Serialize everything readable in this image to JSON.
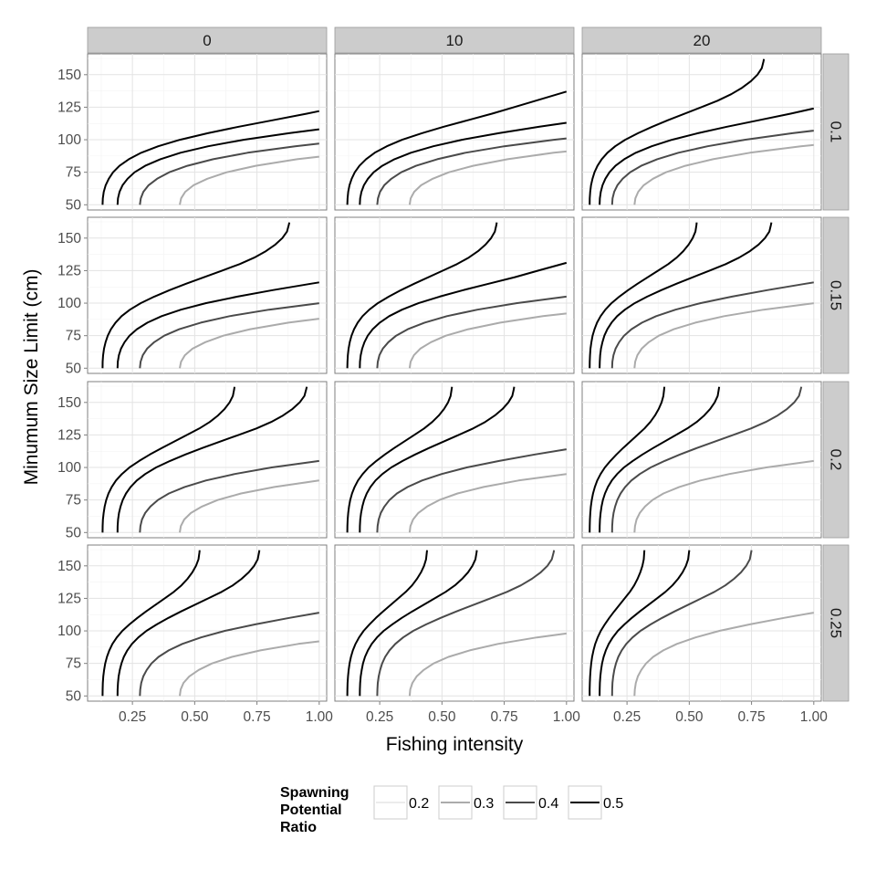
{
  "chart_data": {
    "type": "line",
    "facet_cols": [
      "0",
      "10",
      "20"
    ],
    "facet_rows": [
      "0.1",
      "0.15",
      "0.2",
      "0.25"
    ],
    "xlabel": "Fishing intensity",
    "ylabel": "Minumum Size Limit (cm)",
    "xlim": [
      0.07,
      1.03
    ],
    "ylim": [
      46,
      166
    ],
    "xticks": [
      "0.25",
      "0.50",
      "0.75",
      "1.00"
    ],
    "xtick_values": [
      0.25,
      0.5,
      0.75,
      1.0
    ],
    "yticks": [
      "50",
      "75",
      "100",
      "125",
      "150"
    ],
    "ytick_values": [
      50,
      75,
      100,
      125,
      150
    ],
    "grid": true,
    "legend": {
      "title_lines": [
        "Spawning",
        "Potential",
        "Ratio"
      ],
      "entries": [
        {
          "label": "0.2",
          "color": "#ececec"
        },
        {
          "label": "0.3",
          "color": "#ababab"
        },
        {
          "label": "0.4",
          "color": "#4a4a4a"
        },
        {
          "label": "0.5",
          "color": "#000000"
        }
      ],
      "position": "bottom"
    },
    "curve_shape": {
      "lower_y": [
        50,
        55,
        60,
        65,
        70,
        75,
        80,
        85,
        90,
        95,
        100,
        105,
        110,
        115,
        120,
        125
      ],
      "lower_dx": [
        0,
        0.001,
        0.004,
        0.01,
        0.02,
        0.034,
        0.055,
        0.085,
        0.125,
        0.18,
        0.25,
        0.34,
        0.44,
        0.55,
        0.66,
        0.76
      ],
      "upper_y": [
        125,
        130,
        135,
        140,
        145,
        150,
        155,
        160,
        162
      ],
      "upper_dx_before_top": [
        -0.115,
        -0.085,
        -0.06,
        -0.04,
        -0.024,
        -0.012,
        -0.004,
        -0.001,
        0
      ]
    },
    "panels": [
      {
        "col": "0",
        "row": "0.1",
        "series": [
          {
            "color": "#ababab",
            "x0": 0.44,
            "y_at_x1": 87
          },
          {
            "color": "#4a4a4a",
            "x0": 0.28,
            "y_at_x1": 97
          },
          {
            "color": "#000000",
            "x0": 0.19,
            "y_at_x1": 108
          },
          {
            "color": "#000000",
            "x0": 0.13,
            "y_at_x1": 122
          }
        ]
      },
      {
        "col": "10",
        "row": "0.1",
        "series": [
          {
            "color": "#ababab",
            "x0": 0.37,
            "y_at_x1": 91
          },
          {
            "color": "#4a4a4a",
            "x0": 0.24,
            "y_at_x1": 101
          },
          {
            "color": "#000000",
            "x0": 0.17,
            "y_at_x1": 113
          },
          {
            "color": "#000000",
            "x0": 0.12,
            "y_at_x1": 137
          }
        ]
      },
      {
        "col": "20",
        "row": "0.1",
        "series": [
          {
            "color": "#ababab",
            "x0": 0.28,
            "y_at_x1": 96
          },
          {
            "color": "#4a4a4a",
            "x0": 0.19,
            "y_at_x1": 107
          },
          {
            "color": "#000000",
            "x0": 0.14,
            "y_at_x1": 124
          },
          {
            "color": "#000000",
            "x0": 0.1,
            "x_top": 0.8
          }
        ]
      },
      {
        "col": "0",
        "row": "0.15",
        "series": [
          {
            "color": "#ababab",
            "x0": 0.44,
            "y_at_x1": 88
          },
          {
            "color": "#4a4a4a",
            "x0": 0.28,
            "y_at_x1": 100
          },
          {
            "color": "#000000",
            "x0": 0.19,
            "y_at_x1": 116
          },
          {
            "color": "#000000",
            "x0": 0.13,
            "x_top": 0.88
          }
        ]
      },
      {
        "col": "10",
        "row": "0.15",
        "series": [
          {
            "color": "#ababab",
            "x0": 0.37,
            "y_at_x1": 92
          },
          {
            "color": "#4a4a4a",
            "x0": 0.24,
            "y_at_x1": 105
          },
          {
            "color": "#000000",
            "x0": 0.17,
            "y_at_x1": 131
          },
          {
            "color": "#000000",
            "x0": 0.12,
            "x_top": 0.72
          }
        ]
      },
      {
        "col": "20",
        "row": "0.15",
        "series": [
          {
            "color": "#ababab",
            "x0": 0.28,
            "y_at_x1": 100
          },
          {
            "color": "#4a4a4a",
            "x0": 0.19,
            "y_at_x1": 116
          },
          {
            "color": "#000000",
            "x0": 0.14,
            "x_top": 0.83
          },
          {
            "color": "#000000",
            "x0": 0.1,
            "x_top": 0.53
          }
        ]
      },
      {
        "col": "0",
        "row": "0.2",
        "series": [
          {
            "color": "#ababab",
            "x0": 0.44,
            "y_at_x1": 90
          },
          {
            "color": "#4a4a4a",
            "x0": 0.28,
            "y_at_x1": 105
          },
          {
            "color": "#000000",
            "x0": 0.19,
            "x_top": 0.95
          },
          {
            "color": "#000000",
            "x0": 0.13,
            "x_top": 0.66
          }
        ]
      },
      {
        "col": "10",
        "row": "0.2",
        "series": [
          {
            "color": "#ababab",
            "x0": 0.37,
            "y_at_x1": 95
          },
          {
            "color": "#4a4a4a",
            "x0": 0.24,
            "y_at_x1": 114
          },
          {
            "color": "#000000",
            "x0": 0.17,
            "x_top": 0.79
          },
          {
            "color": "#000000",
            "x0": 0.12,
            "x_top": 0.54
          }
        ]
      },
      {
        "col": "20",
        "row": "0.2",
        "series": [
          {
            "color": "#ababab",
            "x0": 0.28,
            "y_at_x1": 105
          },
          {
            "color": "#4a4a4a",
            "x0": 0.19,
            "x_top": 0.95
          },
          {
            "color": "#000000",
            "x0": 0.14,
            "x_top": 0.62
          },
          {
            "color": "#000000",
            "x0": 0.1,
            "x_top": 0.4
          }
        ]
      },
      {
        "col": "0",
        "row": "0.25",
        "series": [
          {
            "color": "#ababab",
            "x0": 0.44,
            "y_at_x1": 92
          },
          {
            "color": "#4a4a4a",
            "x0": 0.28,
            "y_at_x1": 114
          },
          {
            "color": "#000000",
            "x0": 0.19,
            "x_top": 0.76
          },
          {
            "color": "#000000",
            "x0": 0.13,
            "x_top": 0.52
          }
        ]
      },
      {
        "col": "10",
        "row": "0.25",
        "series": [
          {
            "color": "#ababab",
            "x0": 0.37,
            "y_at_x1": 98
          },
          {
            "color": "#4a4a4a",
            "x0": 0.24,
            "x_top": 0.95
          },
          {
            "color": "#000000",
            "x0": 0.17,
            "x_top": 0.64
          },
          {
            "color": "#000000",
            "x0": 0.12,
            "x_top": 0.44
          }
        ]
      },
      {
        "col": "20",
        "row": "0.25",
        "series": [
          {
            "color": "#ababab",
            "x0": 0.28,
            "y_at_x1": 114
          },
          {
            "color": "#4a4a4a",
            "x0": 0.19,
            "x_top": 0.75
          },
          {
            "color": "#000000",
            "x0": 0.14,
            "x_top": 0.5
          },
          {
            "color": "#000000",
            "x0": 0.1,
            "x_top": 0.32
          }
        ]
      }
    ]
  }
}
